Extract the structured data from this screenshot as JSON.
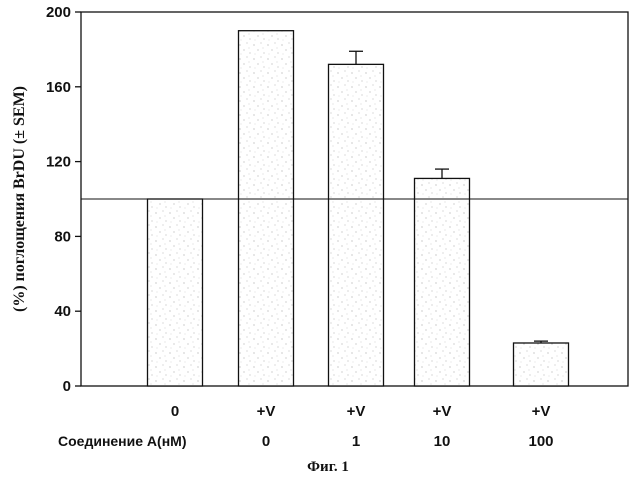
{
  "chart_data": {
    "type": "bar",
    "categories": [
      "0",
      "+V",
      "+V",
      "+V",
      "+V"
    ],
    "compound_row_label": "Соединение A(нМ)",
    "compound_values": [
      "",
      "0",
      "1",
      "10",
      "100"
    ],
    "values": [
      100,
      190,
      172,
      111,
      23
    ],
    "errors": [
      0,
      0,
      7,
      5,
      1
    ],
    "reference_line": 100,
    "ylabel": "(%) поглощения BrDU (± SEM)",
    "caption": "Фиг. 1",
    "ylim": [
      0,
      200
    ],
    "yticks": [
      0,
      40,
      80,
      120,
      160,
      200
    ],
    "grid": false,
    "bar_fill": "#ffffff",
    "bar_stipple": "#888888"
  }
}
